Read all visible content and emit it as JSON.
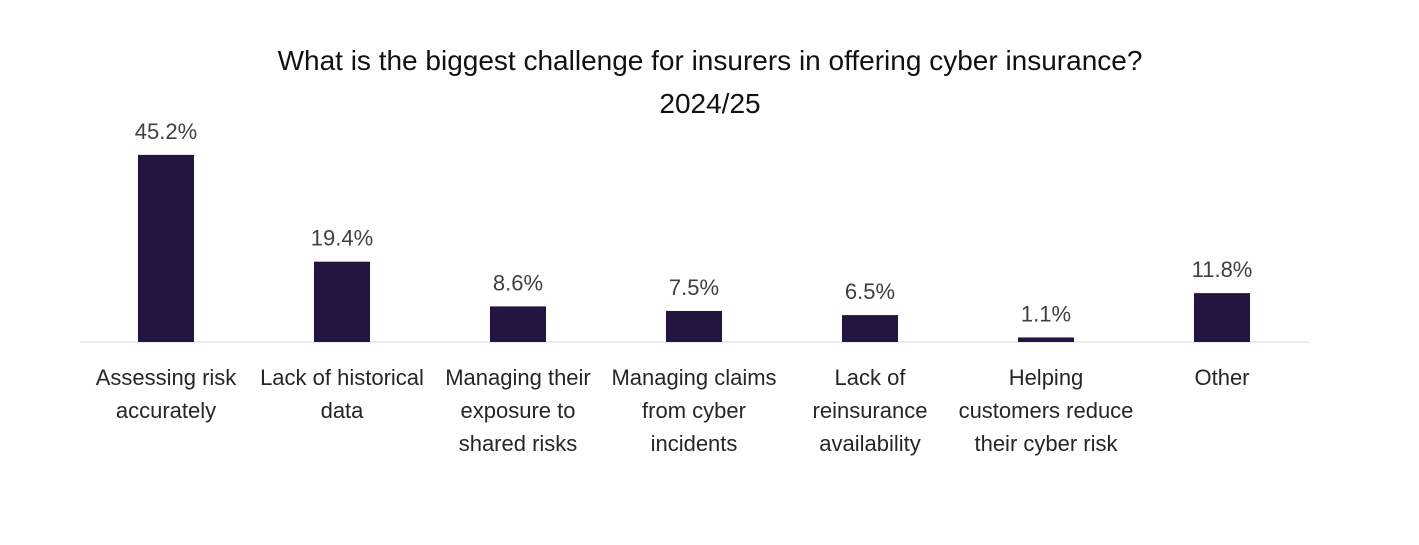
{
  "chart_data": {
    "type": "bar",
    "title": "What is the biggest challenge for insurers in offering cyber insurance?",
    "subtitle": "2024/25",
    "categories": [
      "Assessing risk accurately",
      "Lack of historical data",
      "Managing their exposure to shared risks",
      "Managing claims from cyber incidents",
      "Lack of reinsurance availability",
      "Helping customers reduce their cyber risk",
      "Other"
    ],
    "values": [
      45.2,
      19.4,
      8.6,
      7.5,
      6.5,
      1.1,
      11.8
    ],
    "value_labels": [
      "45.2%",
      "19.4%",
      "8.6%",
      "7.5%",
      "6.5%",
      "1.1%",
      "11.8%"
    ],
    "color": "#231440"
  }
}
